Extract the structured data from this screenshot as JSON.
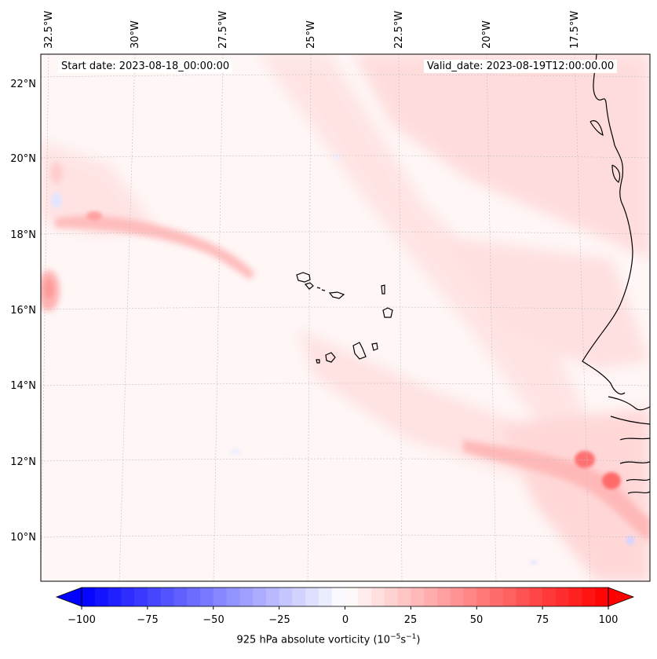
{
  "header": {
    "start_date": "Start date: 2023-08-18_00:00:00",
    "valid_date": "Valid_date: 2023-08-19T12:00:00.00"
  },
  "axes": {
    "lon_labels": [
      "32.5°W",
      "30°W",
      "27.5°W",
      "25°W",
      "22.5°W",
      "20°W",
      "17.5°W"
    ],
    "lat_labels": [
      "22°N",
      "20°N",
      "18°N",
      "16°N",
      "14°N",
      "12°N",
      "10°N"
    ]
  },
  "colorbar": {
    "ticks": [
      "−100",
      "−75",
      "−50",
      "−25",
      "0",
      "25",
      "50",
      "75",
      "100"
    ],
    "label_prefix": "925 hPa absolute vorticity (10",
    "exp1": "−5",
    "label_mid": "s",
    "exp2": "−1",
    "label_suffix": ")",
    "min_color": "#0000ff",
    "mid_color": "#ffffff",
    "max_color": "#ff0000"
  }
}
